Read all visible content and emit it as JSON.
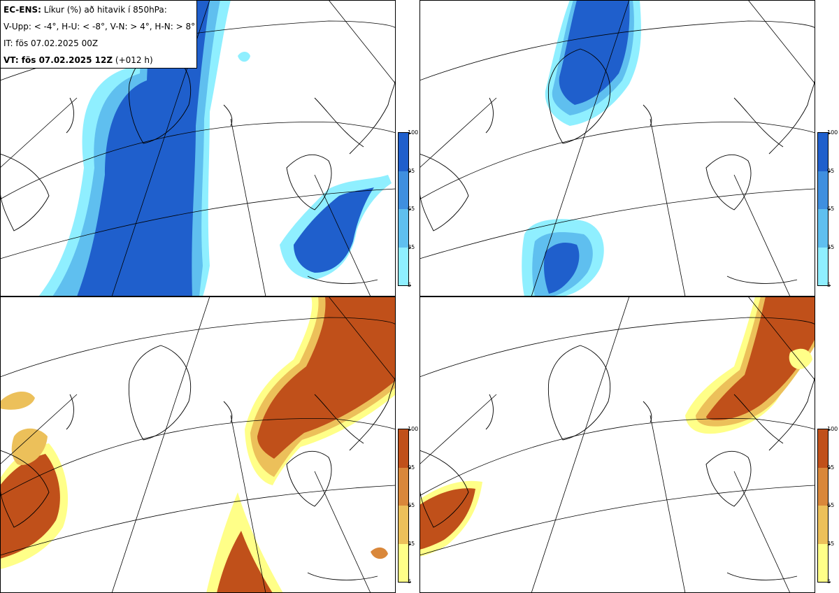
{
  "header": {
    "title_bold": "EC-ENS:",
    "title_rest": "Líkur (%) að hitavik í 850hPa:",
    "legend_line": "V-Upp: < -4°, H-U: < -8°, V-N: > 4°, H-N: > 8°",
    "it_line": "IT: fös 07.02.2025 00Z",
    "vt_bold": "VT: fös 07.02.2025 12Z",
    "vt_rest": "(+012 h)"
  },
  "colorbars": {
    "ticks": [
      "100",
      "95",
      "65",
      "35",
      "5"
    ],
    "cold_colors": [
      "#1f5fcc",
      "#3f8fdf",
      "#5fbfef",
      "#8fefff"
    ],
    "warm_colors": [
      "#c0501a",
      "#d9873a",
      "#ecc05a",
      "#ffff88"
    ]
  },
  "panels": [
    {
      "id": "V-Upp",
      "threshold": "< -4°",
      "scale": "cold"
    },
    {
      "id": "H-U",
      "threshold": "< -8°",
      "scale": "cold"
    },
    {
      "id": "V-N",
      "threshold": "> 4°",
      "scale": "warm"
    },
    {
      "id": "H-N",
      "threshold": "> 8°",
      "scale": "warm"
    }
  ]
}
